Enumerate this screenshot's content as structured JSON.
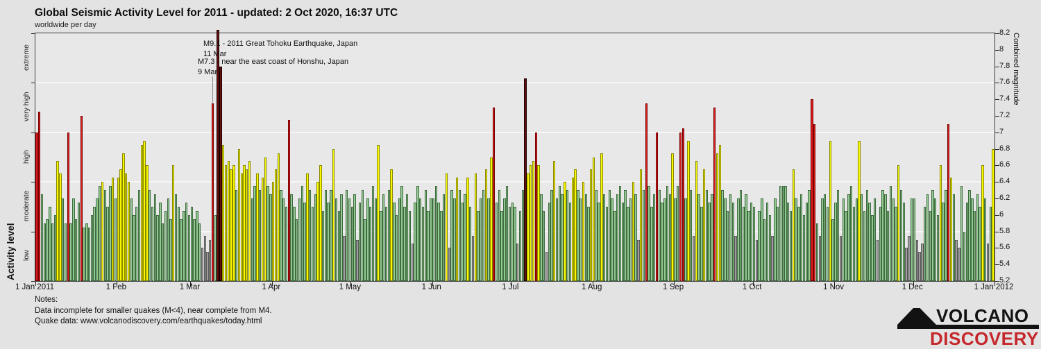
{
  "header": {
    "title": "Global Seismic Activity Level for 2011 - updated:  2 Oct 2020, 16:37 UTC",
    "subtitle": "worldwide per day"
  },
  "chart_data": {
    "type": "bar",
    "title": "Global Seismic Activity Level for 2011 - updated:  2 Oct 2020, 16:37 UTC",
    "subtitle": "worldwide per day",
    "ylabel_left": "Activity level",
    "ylabel_right": "Combined magnitude",
    "ylim": [
      5.2,
      8.2
    ],
    "grid": "on",
    "activity_levels": [
      {
        "name": "low",
        "range": [
          5.2,
          5.8
        ],
        "fill": "#9e9e9e",
        "edge": "#5a5a5a"
      },
      {
        "name": "moderate",
        "range": [
          5.8,
          6.4
        ],
        "fill": "#92c892",
        "edge": "#3f6b3f"
      },
      {
        "name": "high",
        "range": [
          6.4,
          7.0
        ],
        "fill": "#f8f800",
        "edge": "#8a8a00"
      },
      {
        "name": "very high",
        "range": [
          7.0,
          7.6
        ],
        "fill": "#dd1e1e",
        "edge": "#7a0000"
      },
      {
        "name": "extreme",
        "range": [
          7.6,
          8.2
        ],
        "fill": "#641010",
        "edge": "#1c0000"
      }
    ],
    "level_boundaries": [
      5.2,
      5.8,
      6.4,
      7.0,
      7.6,
      8.2
    ],
    "right_tick_labels": [
      "8.2",
      "8",
      "7.8",
      "7.6",
      "7.4",
      "7.2",
      "7",
      "6.8",
      "6.6",
      "6.4",
      "6.2",
      "6",
      "5.8",
      "5.6",
      "5.4",
      "5.2"
    ],
    "x_tick_labels": [
      "1 Jan 2011",
      "1 Feb",
      "1 Mar",
      "1 Apr",
      "1 May",
      "1 Jun",
      "1 Jul",
      "1 Aug",
      "1 Sep",
      "1 Oct",
      "1 Nov",
      "1 Dec",
      "1 Jan 2012"
    ],
    "x_tick_days": [
      0,
      31,
      59,
      90,
      120,
      151,
      181,
      212,
      243,
      273,
      304,
      334,
      365
    ],
    "month_order": [
      "jan",
      "feb",
      "mar",
      "apr",
      "may",
      "jun",
      "jul",
      "aug",
      "sep",
      "oct",
      "nov",
      "dec"
    ],
    "daily_combined_magnitude": {
      "jan": [
        7.0,
        7.25,
        6.25,
        5.9,
        5.95,
        6.1,
        5.9,
        6.0,
        6.65,
        6.5,
        6.2,
        5.9,
        7.0,
        5.9,
        6.2,
        5.95,
        6.15,
        7.2,
        5.85,
        5.9,
        5.85,
        6.0,
        6.1,
        6.2,
        6.35,
        6.4,
        6.3,
        6.1,
        6.35,
        6.45,
        6.2
      ],
      "feb": [
        6.45,
        6.55,
        6.75,
        6.5,
        6.4,
        6.2,
        6.0,
        6.1,
        6.3,
        6.85,
        6.9,
        6.6,
        6.3,
        6.1,
        6.25,
        6.0,
        6.15,
        5.9,
        6.05,
        6.2,
        5.95,
        6.6,
        6.25,
        6.1,
        5.95,
        6.05,
        6.15,
        6.0
      ],
      "mar": [
        6.1,
        5.95,
        6.05,
        5.9,
        5.6,
        5.75,
        5.55,
        5.7,
        7.35,
        6.0,
        9.1,
        7.8,
        6.85,
        6.6,
        6.65,
        6.55,
        6.6,
        6.3,
        6.8,
        6.5,
        6.6,
        6.55,
        6.65,
        6.2,
        6.35,
        6.5,
        6.3,
        6.45,
        6.7,
        6.35,
        6.25
      ],
      "apr": [
        6.4,
        6.55,
        6.75,
        6.3,
        6.2,
        6.1,
        7.15,
        6.25,
        6.1,
        5.95,
        6.2,
        6.35,
        6.15,
        6.5,
        6.3,
        6.1,
        6.25,
        6.4,
        6.6,
        6.05,
        6.3,
        6.15,
        6.3,
        6.8,
        6.2,
        6.05,
        6.25,
        5.75,
        6.3,
        6.2
      ],
      "may": [
        6.1,
        6.25,
        5.7,
        6.15,
        6.3,
        5.95,
        6.2,
        6.1,
        6.35,
        6.2,
        6.85,
        6.05,
        6.25,
        6.1,
        6.3,
        6.55,
        6.15,
        6.0,
        6.2,
        6.35,
        6.1,
        6.25,
        6.05,
        5.65,
        6.15,
        6.35,
        6.2,
        6.1,
        6.3,
        6.05,
        6.2
      ],
      "jun": [
        6.2,
        6.35,
        6.15,
        6.05,
        6.25,
        6.5,
        5.6,
        6.3,
        6.2,
        6.45,
        6.3,
        6.15,
        6.25,
        6.45,
        6.1,
        5.75,
        6.5,
        6.05,
        6.2,
        6.3,
        6.55,
        6.2,
        6.7,
        7.3,
        6.15,
        6.3,
        6.05,
        6.2,
        6.35,
        6.1
      ],
      "jul": [
        6.15,
        6.1,
        5.65,
        6.05,
        6.3,
        7.65,
        6.5,
        6.6,
        6.65,
        7.0,
        6.6,
        6.25,
        6.05,
        5.55,
        6.15,
        6.3,
        6.65,
        6.2,
        6.35,
        6.25,
        6.4,
        6.3,
        6.15,
        6.45,
        6.55,
        6.3,
        6.2,
        6.4,
        6.25,
        6.1,
        6.55
      ],
      "aug": [
        6.7,
        6.3,
        6.15,
        6.75,
        6.25,
        6.1,
        6.3,
        6.2,
        6.05,
        6.25,
        6.35,
        6.15,
        6.3,
        6.1,
        6.2,
        6.4,
        6.25,
        5.7,
        6.55,
        6.3,
        7.35,
        6.35,
        6.1,
        6.25,
        7.0,
        6.3,
        6.15,
        6.2,
        6.35,
        6.25,
        6.75
      ],
      "sep": [
        6.2,
        6.35,
        7.0,
        7.05,
        6.2,
        6.9,
        6.3,
        5.75,
        6.65,
        6.25,
        6.1,
        6.55,
        6.3,
        6.15,
        6.25,
        7.3,
        6.75,
        6.85,
        6.3,
        6.2,
        6.05,
        6.25,
        6.15,
        5.75,
        6.2,
        6.3,
        6.1,
        6.25,
        6.05,
        6.15
      ],
      "oct": [
        6.1,
        5.7,
        6.05,
        6.2,
        5.95,
        6.15,
        6.0,
        5.75,
        6.2,
        6.1,
        6.35,
        6.35,
        6.35,
        6.15,
        6.05,
        6.55,
        6.2,
        6.1,
        6.25,
        6.0,
        6.15,
        6.3,
        7.4,
        7.1,
        5.9,
        5.75,
        6.2,
        6.25,
        6.1,
        6.9,
        5.95
      ],
      "nov": [
        6.15,
        6.3,
        5.75,
        6.2,
        6.05,
        6.25,
        6.35,
        6.1,
        6.2,
        6.9,
        6.25,
        6.05,
        6.3,
        6.15,
        6.0,
        6.2,
        5.7,
        6.1,
        6.3,
        6.25,
        6.05,
        6.35,
        6.2,
        6.1,
        6.6,
        6.3,
        6.15,
        5.6,
        5.75,
        6.2
      ],
      "dec": [
        6.2,
        5.7,
        5.55,
        5.65,
        6.1,
        6.25,
        6.05,
        6.3,
        6.2,
        6.0,
        6.6,
        6.15,
        6.3,
        7.1,
        6.45,
        6.25,
        5.7,
        5.6,
        6.35,
        5.8,
        6.15,
        6.3,
        6.2,
        6.05,
        6.25,
        6.1,
        6.6,
        6.2,
        5.65,
        6.1,
        6.8
      ],
      "highlight_events": [
        {
          "date": "11 Mar",
          "magnitude": 9.1,
          "level": "extreme"
        },
        {
          "date": "9 Mar",
          "magnitude": 7.35,
          "level": "very high"
        },
        {
          "date": "6 Jul",
          "magnitude": 7.65,
          "level": "extreme"
        }
      ]
    },
    "annotations": [
      {
        "text": "M9.1 - 2011 Great Tohoku Earthquake, Japan",
        "date": "11 Mar"
      },
      {
        "text": "M7.3 - near the east coast of Honshu, Japan",
        "date": "9 Mar"
      }
    ]
  },
  "notes": {
    "heading": "Notes:",
    "line1": "Data incomplete for smaller quakes (M<4), near complete from M4.",
    "line2": "Quake data: www.volcanodiscovery.com/earthquakes/today.html"
  },
  "logo": {
    "line1": "VOLCANO",
    "line2": "DISCOVERY",
    "brand_red": "#c5282c",
    "brand_black": "#121212"
  }
}
